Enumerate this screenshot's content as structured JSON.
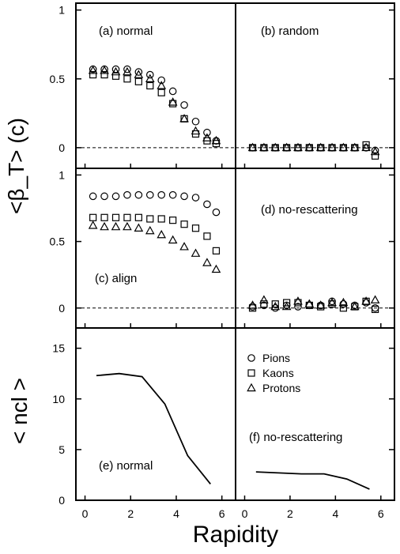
{
  "chart_data": [
    {
      "type": "scatter",
      "panel": "a",
      "annotation": "(a) normal",
      "ylabel": "<β_T> (c)",
      "xlim": [
        -0.4,
        6.6
      ],
      "ylim": [
        -0.15,
        1.05
      ],
      "yticks": [
        "0",
        "0.5",
        "1"
      ],
      "series": [
        {
          "name": "Pions",
          "marker": "circle",
          "x": [
            0.35,
            0.85,
            1.35,
            1.85,
            2.35,
            2.85,
            3.35,
            3.85,
            4.35,
            4.85,
            5.35,
            5.75
          ],
          "y": [
            0.57,
            0.57,
            0.57,
            0.57,
            0.55,
            0.53,
            0.49,
            0.41,
            0.31,
            0.19,
            0.11,
            0.05
          ]
        },
        {
          "name": "Kaons",
          "marker": "square",
          "x": [
            0.35,
            0.85,
            1.35,
            1.85,
            2.35,
            2.85,
            3.35,
            3.85,
            4.35,
            4.85,
            5.35,
            5.75
          ],
          "y": [
            0.53,
            0.53,
            0.52,
            0.5,
            0.48,
            0.45,
            0.4,
            0.32,
            0.21,
            0.1,
            0.05,
            0.03
          ]
        },
        {
          "name": "Protons",
          "marker": "triangle",
          "x": [
            0.35,
            0.85,
            1.35,
            1.85,
            2.35,
            2.85,
            3.35,
            3.85,
            4.35,
            4.85,
            5.35,
            5.75
          ],
          "y": [
            0.56,
            0.56,
            0.55,
            0.55,
            0.53,
            0.5,
            0.45,
            0.33,
            0.21,
            0.12,
            0.07,
            0.05
          ]
        }
      ]
    },
    {
      "type": "scatter",
      "panel": "b",
      "annotation": "(b) random",
      "xlim": [
        -0.4,
        6.6
      ],
      "ylim": [
        -0.15,
        1.05
      ],
      "series": [
        {
          "name": "Pions",
          "marker": "circle",
          "x": [
            0.35,
            0.85,
            1.35,
            1.85,
            2.35,
            2.85,
            3.35,
            3.85,
            4.35,
            4.85,
            5.35,
            5.75
          ],
          "y": [
            0.0,
            0.0,
            0.0,
            0.0,
            0.0,
            0.0,
            0.0,
            0.0,
            0.0,
            0.0,
            0.0,
            -0.02
          ]
        },
        {
          "name": "Kaons",
          "marker": "square",
          "x": [
            0.35,
            0.85,
            1.35,
            1.85,
            2.35,
            2.85,
            3.35,
            3.85,
            4.35,
            4.85,
            5.35,
            5.75
          ],
          "y": [
            0.0,
            0.0,
            0.0,
            0.0,
            0.0,
            0.0,
            0.0,
            0.0,
            0.0,
            0.0,
            0.02,
            -0.06
          ]
        },
        {
          "name": "Protons",
          "marker": "triangle",
          "x": [
            0.35,
            0.85,
            1.35,
            1.85,
            2.35,
            2.85,
            3.35,
            3.85,
            4.35,
            4.85,
            5.35,
            5.75
          ],
          "y": [
            0.0,
            0.0,
            0.0,
            0.0,
            0.0,
            0.0,
            0.0,
            0.0,
            0.0,
            0.0,
            0.0,
            -0.03
          ]
        }
      ]
    },
    {
      "type": "scatter",
      "panel": "c",
      "annotation": "(c) align",
      "xlim": [
        -0.4,
        6.6
      ],
      "ylim": [
        -0.15,
        1.05
      ],
      "yticks": [
        "0",
        "0.5",
        "1"
      ],
      "series": [
        {
          "name": "Pions",
          "marker": "circle",
          "x": [
            0.35,
            0.85,
            1.35,
            1.85,
            2.35,
            2.85,
            3.35,
            3.85,
            4.35,
            4.85,
            5.35,
            5.75
          ],
          "y": [
            0.84,
            0.84,
            0.84,
            0.85,
            0.85,
            0.85,
            0.85,
            0.85,
            0.84,
            0.83,
            0.78,
            0.72
          ]
        },
        {
          "name": "Kaons",
          "marker": "square",
          "x": [
            0.35,
            0.85,
            1.35,
            1.85,
            2.35,
            2.85,
            3.35,
            3.85,
            4.35,
            4.85,
            5.35,
            5.75
          ],
          "y": [
            0.68,
            0.68,
            0.68,
            0.68,
            0.68,
            0.67,
            0.67,
            0.66,
            0.63,
            0.6,
            0.54,
            0.43
          ]
        },
        {
          "name": "Protons",
          "marker": "triangle",
          "x": [
            0.35,
            0.85,
            1.35,
            1.85,
            2.35,
            2.85,
            3.35,
            3.85,
            4.35,
            4.85,
            5.35,
            5.75
          ],
          "y": [
            0.62,
            0.61,
            0.61,
            0.61,
            0.6,
            0.58,
            0.55,
            0.51,
            0.46,
            0.41,
            0.34,
            0.29
          ]
        }
      ]
    },
    {
      "type": "scatter",
      "panel": "d",
      "annotation": "(d) no-rescattering",
      "xlim": [
        -0.4,
        6.6
      ],
      "ylim": [
        -0.15,
        1.05
      ],
      "series": [
        {
          "name": "Pions",
          "marker": "circle",
          "x": [
            0.35,
            0.85,
            1.35,
            1.85,
            2.35,
            2.85,
            3.35,
            3.85,
            4.35,
            4.85,
            5.35,
            5.75
          ],
          "y": [
            0.01,
            0.02,
            0.0,
            0.02,
            0.01,
            0.02,
            0.02,
            0.05,
            0.03,
            0.02,
            0.04,
            0.0
          ]
        },
        {
          "name": "Kaons",
          "marker": "square",
          "x": [
            0.35,
            0.85,
            1.35,
            1.85,
            2.35,
            2.85,
            3.35,
            3.85,
            4.35,
            4.85,
            5.35,
            5.75
          ],
          "y": [
            0.0,
            0.03,
            0.03,
            0.04,
            0.04,
            0.02,
            0.01,
            0.03,
            0.0,
            0.01,
            0.05,
            -0.01
          ]
        },
        {
          "name": "Protons",
          "marker": "triangle",
          "x": [
            0.35,
            0.85,
            1.35,
            1.85,
            2.35,
            2.85,
            3.35,
            3.85,
            4.35,
            4.85,
            5.35,
            5.75
          ],
          "y": [
            0.02,
            0.06,
            0.01,
            0.01,
            0.05,
            0.03,
            0.02,
            0.04,
            0.04,
            0.01,
            0.05,
            0.06
          ]
        }
      ]
    },
    {
      "type": "line",
      "panel": "e",
      "annotation": "(e) normal",
      "ylabel": "< ncl >",
      "xlim": [
        -0.4,
        6.6
      ],
      "ylim": [
        0,
        17
      ],
      "yticks": [
        "0",
        "5",
        "10",
        "15"
      ],
      "xticks": [
        "0",
        "2",
        "4",
        "6"
      ],
      "series": [
        {
          "x": [
            0.5,
            1.5,
            2.5,
            3.5,
            4.5,
            5.5
          ],
          "y": [
            12.3,
            12.5,
            12.2,
            9.5,
            4.4,
            1.6
          ]
        }
      ]
    },
    {
      "type": "line",
      "panel": "f",
      "annotation": "(f) no-rescattering",
      "xlim": [
        -0.4,
        6.6
      ],
      "ylim": [
        0,
        17
      ],
      "xticks": [
        "0",
        "2",
        "4",
        "6"
      ],
      "xlabel": "Rapidity",
      "legend": {
        "placement": "top-left",
        "entries": [
          {
            "label": "Pions",
            "marker": "circle"
          },
          {
            "label": "Kaons",
            "marker": "square"
          },
          {
            "label": "Protons",
            "marker": "triangle"
          }
        ]
      },
      "series": [
        {
          "x": [
            0.5,
            1.5,
            2.5,
            3.5,
            4.5,
            5.5
          ],
          "y": [
            2.8,
            2.7,
            2.6,
            2.6,
            2.1,
            1.1
          ]
        }
      ]
    }
  ]
}
